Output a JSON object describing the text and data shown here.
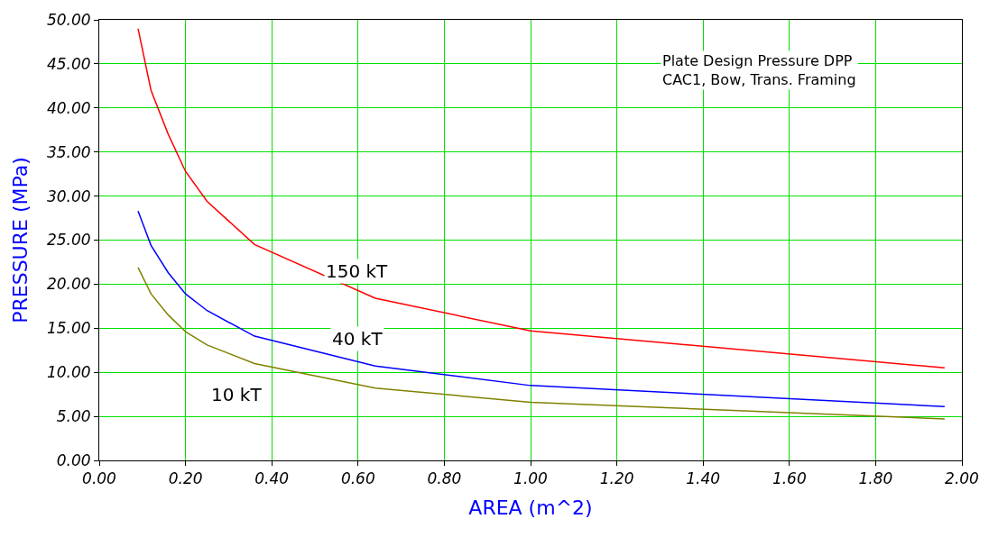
{
  "chart_data": {
    "type": "line",
    "xlabel": "AREA (m^2)",
    "ylabel": "PRESSURE (MPa)",
    "x": [
      0.09,
      0.12,
      0.16,
      0.2,
      0.25,
      0.36,
      0.64,
      1.0,
      1.96
    ],
    "series": [
      {
        "name": "150 kT",
        "color": "#ff0000",
        "values": [
          49.0,
          42.0,
          37.0,
          32.8,
          29.4,
          24.5,
          18.4,
          14.7,
          10.5
        ]
      },
      {
        "name": "40 kT",
        "color": "#0000ff",
        "values": [
          28.3,
          24.4,
          21.3,
          18.9,
          17.0,
          14.1,
          10.7,
          8.5,
          6.1
        ]
      },
      {
        "name": "10 kT",
        "color": "#808000",
        "values": [
          21.9,
          18.9,
          16.5,
          14.6,
          13.1,
          11.0,
          8.2,
          6.6,
          4.7
        ]
      }
    ],
    "xlim": [
      0,
      2
    ],
    "xticks": [
      {
        "value": 0,
        "label": "0.00"
      },
      {
        "value": 0.2,
        "label": "0.20"
      },
      {
        "value": 0.4,
        "label": "0.40"
      },
      {
        "value": 0.6,
        "label": "0.60"
      },
      {
        "value": 0.8,
        "label": "0.80"
      },
      {
        "value": 1,
        "label": "1.00"
      },
      {
        "value": 1.2,
        "label": "1.20"
      },
      {
        "value": 1.4,
        "label": "1.40"
      },
      {
        "value": 1.6,
        "label": "1.60"
      },
      {
        "value": 1.8,
        "label": "1.80"
      },
      {
        "value": 2,
        "label": "2.00"
      }
    ],
    "ylim": [
      0,
      50
    ],
    "yticks": [
      {
        "value": 0,
        "label": "0.00"
      },
      {
        "value": 5,
        "label": "5.00"
      },
      {
        "value": 10,
        "label": "10.00"
      },
      {
        "value": 15,
        "label": "15.00"
      },
      {
        "value": 20,
        "label": "20.00"
      },
      {
        "value": 25,
        "label": "25.00"
      },
      {
        "value": 30,
        "label": "30.00"
      },
      {
        "value": 35,
        "label": "35.00"
      },
      {
        "value": 40,
        "label": "40.00"
      },
      {
        "value": 45,
        "label": "45.00"
      },
      {
        "value": 50,
        "label": "50.00"
      }
    ],
    "grid": true,
    "legend": false,
    "marker": "none",
    "line_style": "solid",
    "annotations": [
      "Plate Design Pressure DPP\nCAC1, Bow, Trans. Framing"
    ]
  }
}
